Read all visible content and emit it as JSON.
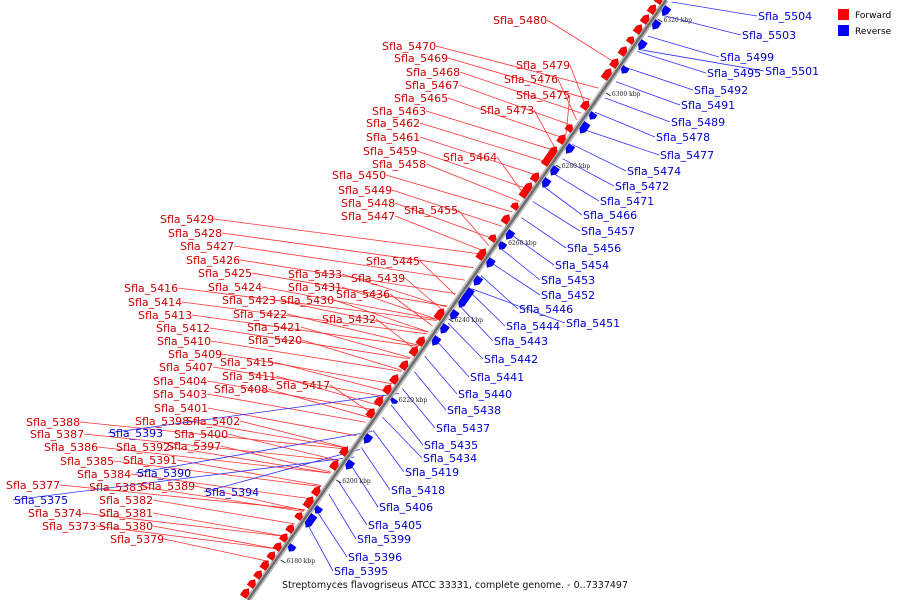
{
  "caption": "Streptomyces flavogriseus ATCC 33331, complete genome. - 0..7337497",
  "legend": [
    {
      "label": "Forward",
      "color": "#ff0000"
    },
    {
      "label": "Reverse",
      "color": "#0000ff"
    }
  ],
  "ticks": [
    "6180 kbp",
    "6200 kbp",
    "6220 kbp",
    "6240 kbp",
    "6260 kbp",
    "6280 kbp",
    "6300 kbp",
    "6320 kbp"
  ],
  "forward_labels": [
    "Sfla_5480",
    "Sfla_5479",
    "Sfla_5476",
    "Sfla_5475",
    "Sfla_5473",
    "Sfla_5470",
    "Sfla_5469",
    "Sfla_5468",
    "Sfla_5467",
    "Sfla_5465",
    "Sfla_5463",
    "Sfla_5462",
    "Sfla_5461",
    "Sfla_5459",
    "Sfla_5458",
    "Sfla_5464",
    "Sfla_5450",
    "Sfla_5449",
    "Sfla_5448",
    "Sfla_5447",
    "Sfla_5455",
    "Sfla_5445",
    "Sfla_5439",
    "Sfla_5436",
    "Sfla_5433",
    "Sfla_5431",
    "Sfla_5430",
    "Sfla_5432",
    "Sfla_5429",
    "Sfla_5428",
    "Sfla_5427",
    "Sfla_5426",
    "Sfla_5425",
    "Sfla_5424",
    "Sfla_5423",
    "Sfla_5422",
    "Sfla_5421",
    "Sfla_5420",
    "Sfla_5416",
    "Sfla_5414",
    "Sfla_5413",
    "Sfla_5412",
    "Sfla_5410",
    "Sfla_5409",
    "Sfla_5415",
    "Sfla_5407",
    "Sfla_5411",
    "Sfla_5404",
    "Sfla_5408",
    "Sfla_5417",
    "Sfla_5403",
    "Sfla_5401",
    "Sfla_5398",
    "Sfla_5402",
    "Sfla_5388",
    "Sfla_5387",
    "Sfla_5400",
    "Sfla_5386",
    "Sfla_5392",
    "Sfla_5397",
    "Sfla_5385",
    "Sfla_5391",
    "Sfla_5384",
    "Sfla_5383",
    "Sfla_5389",
    "Sfla_5382",
    "Sfla_5377",
    "Sfla_5374",
    "Sfla_5381",
    "Sfla_5373",
    "Sfla_5380",
    "Sfla_5379"
  ],
  "reverse_labels": [
    "Sfla_5504",
    "Sfla_5503",
    "Sfla_5499",
    "Sfla_5495",
    "Sfla_5501",
    "Sfla_5492",
    "Sfla_5491",
    "Sfla_5489",
    "Sfla_5478",
    "Sfla_5477",
    "Sfla_5474",
    "Sfla_5472",
    "Sfla_5471",
    "Sfla_5466",
    "Sfla_5457",
    "Sfla_5456",
    "Sfla_5454",
    "Sfla_5453",
    "Sfla_5452",
    "Sfla_5446",
    "Sfla_5451",
    "Sfla_5444",
    "Sfla_5443",
    "Sfla_5442",
    "Sfla_5441",
    "Sfla_5440",
    "Sfla_5438",
    "Sfla_5437",
    "Sfla_5435",
    "Sfla_5434",
    "Sfla_5419",
    "Sfla_5418",
    "Sfla_5406",
    "Sfla_5405",
    "Sfla_5399",
    "Sfla_5396",
    "Sfla_5395",
    "Sfla_5393",
    "Sfla_5390",
    "Sfla_5394",
    "Sfla_5375"
  ]
}
